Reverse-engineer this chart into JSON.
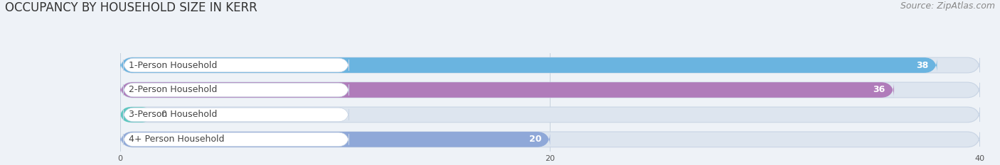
{
  "title": "OCCUPANCY BY HOUSEHOLD SIZE IN KERR",
  "source": "Source: ZipAtlas.com",
  "categories": [
    "1-Person Household",
    "2-Person Household",
    "3-Person Household",
    "4+ Person Household"
  ],
  "values": [
    38,
    36,
    0,
    20
  ],
  "bar_colors": [
    "#6ab4e0",
    "#b07cba",
    "#5ec8c0",
    "#8fa8d8"
  ],
  "xlim": [
    0,
    40
  ],
  "xticks": [
    0,
    20,
    40
  ],
  "background_color": "#eef2f7",
  "bar_bg_color": "#dde5ef",
  "label_bg_color": "#ffffff",
  "title_fontsize": 12,
  "source_fontsize": 9,
  "label_fontsize": 9,
  "value_fontsize": 9
}
